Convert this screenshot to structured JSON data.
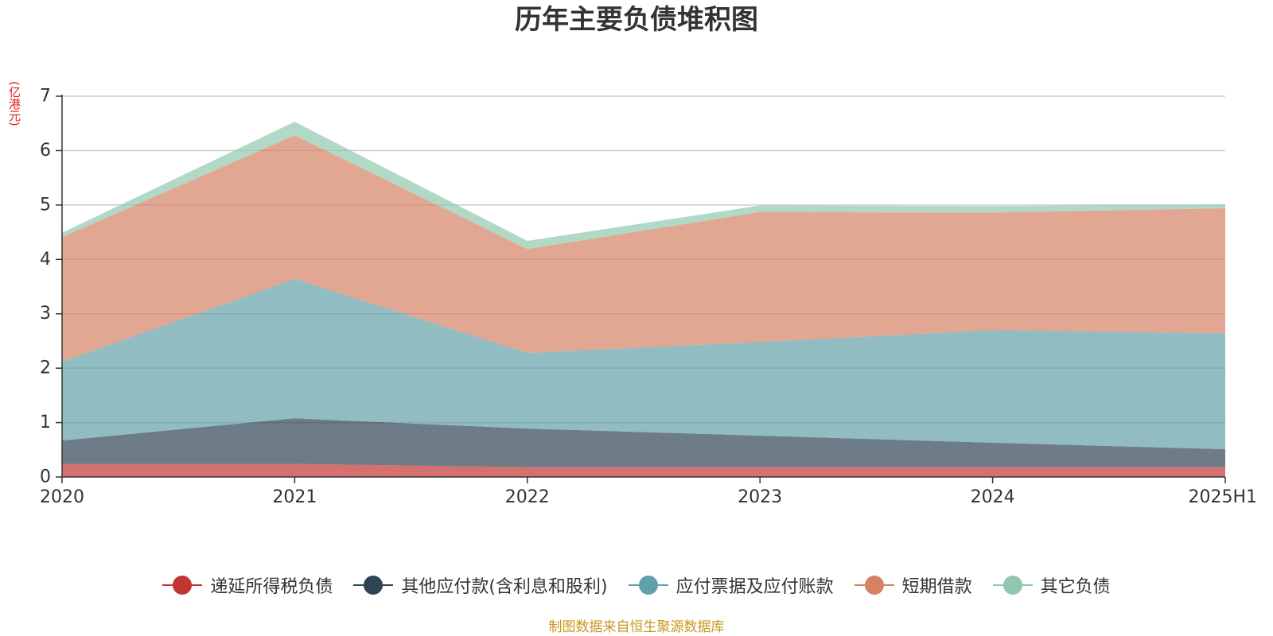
{
  "chart_data": {
    "type": "area",
    "stacked": true,
    "title": "历年主要负债堆积图",
    "ylabel": "(亿港元)",
    "x": [
      "2020",
      "2021",
      "2022",
      "2023",
      "2024",
      "2025H1"
    ],
    "ylim": [
      0,
      7
    ],
    "yticks": [
      0,
      1,
      2,
      3,
      4,
      5,
      6,
      7
    ],
    "grid": true,
    "legend_position": "bottom",
    "series": [
      {
        "name": "递延所得税负债",
        "color": "#c23531",
        "values": [
          0.24,
          0.24,
          0.18,
          0.18,
          0.18,
          0.18
        ]
      },
      {
        "name": "其他应付款(含利息和股利)",
        "color": "#2f4554",
        "values": [
          0.43,
          0.84,
          0.71,
          0.58,
          0.45,
          0.33
        ]
      },
      {
        "name": "应付票据及应付账款",
        "color": "#61a0a8",
        "values": [
          1.45,
          2.56,
          1.39,
          1.72,
          2.07,
          2.13
        ]
      },
      {
        "name": "短期借款",
        "color": "#d48265",
        "values": [
          2.29,
          2.64,
          1.91,
          2.39,
          2.16,
          2.3
        ]
      },
      {
        "name": "其它负债",
        "color": "#91c7ae",
        "values": [
          0.08,
          0.25,
          0.15,
          0.12,
          0.12,
          0.07
        ]
      }
    ]
  },
  "source_note": "制图数据来自恒生聚源数据库"
}
